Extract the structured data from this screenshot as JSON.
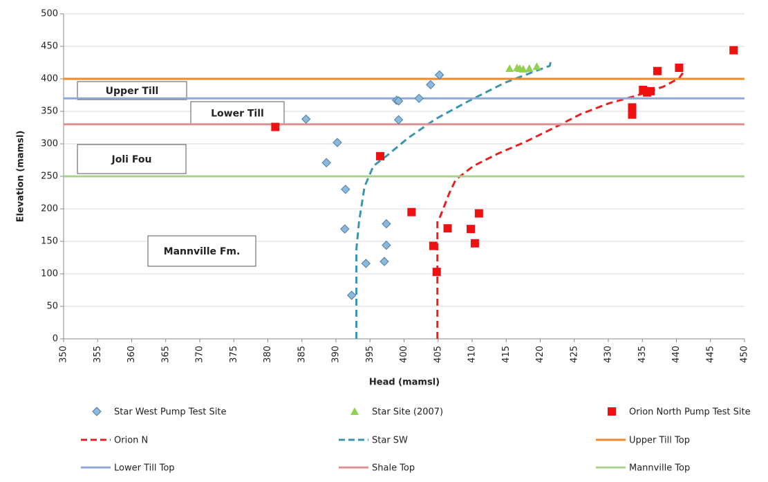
{
  "chart_data": {
    "type": "scatter",
    "x_label": "Head (mamsl)",
    "y_label": "Elevation (mamsl)",
    "xlim": [
      350,
      450
    ],
    "xticks": [
      350,
      355,
      360,
      365,
      370,
      375,
      380,
      385,
      390,
      395,
      400,
      405,
      410,
      415,
      420,
      425,
      430,
      435,
      440,
      445,
      450
    ],
    "ylim": [
      0,
      500
    ],
    "yticks": [
      0,
      50,
      100,
      150,
      200,
      250,
      300,
      350,
      400,
      450,
      500
    ],
    "grid": true,
    "annotations": [
      "Upper Till",
      "Lower Till",
      "Joli Fou",
      "Mannville Fm."
    ],
    "series": [
      {
        "name": "Star West Pump Test Site",
        "type": "scatter",
        "marker": "diamond",
        "color": "#8db8da",
        "x": [
          385.6,
          390.2,
          388.6,
          391.4,
          391.3,
          392.3,
          394.4,
          397.1,
          397.4,
          397.4,
          399.2,
          398.9,
          399.2,
          402.2,
          403.9,
          405.2
        ],
        "values": [
          338,
          302,
          271,
          230,
          169,
          67,
          116,
          119,
          144,
          177,
          337,
          367,
          366,
          370,
          391,
          406
        ]
      },
      {
        "name": "Star Site (2007)",
        "type": "scatter",
        "marker": "triangle",
        "color": "#92d050",
        "x": [
          415.5,
          416.6,
          417,
          417.5,
          418.4,
          419.5
        ],
        "values": [
          416,
          417,
          416,
          415,
          416,
          419
        ]
      },
      {
        "name": "Orion North Pump Test Site",
        "type": "scatter",
        "marker": "square",
        "color": "#ee1111",
        "x": [
          381.1,
          396.5,
          401.1,
          404.3,
          404.8,
          406.4,
          409.8,
          410.4,
          411,
          433.5,
          433.5,
          435.1,
          435.7,
          436.2,
          437.2,
          440.4,
          448.4
        ],
        "values": [
          326,
          281,
          195,
          143,
          103,
          170,
          169,
          147,
          193,
          356,
          345,
          383,
          379,
          381,
          412,
          417,
          444
        ]
      },
      {
        "name": "Orion N",
        "type": "line",
        "dashed": true,
        "color": "#e8201f",
        "x": [
          404.9,
          404.9,
          405.3,
          406.6,
          407.6,
          410.2,
          413.8,
          417.8,
          421.9,
          426,
          430,
          434.1,
          438.1,
          440.4,
          441
        ],
        "values": [
          0,
          181,
          188,
          223,
          245,
          266,
          285,
          303,
          324,
          346,
          362,
          374,
          388,
          401,
          410
        ]
      },
      {
        "name": "Star SW",
        "type": "line",
        "dashed": true,
        "color": "#3d94ad",
        "x": [
          393,
          393,
          393.4,
          394.2,
          395.5,
          397.5,
          400.6,
          404.6,
          409.7,
          414.8,
          418.8,
          421.4,
          421.6
        ],
        "values": [
          0,
          138,
          181,
          234,
          266,
          282,
          309,
          338,
          367,
          394,
          410,
          420,
          429
        ]
      },
      {
        "name": "Upper Till Top",
        "type": "line",
        "dashed": false,
        "color": "#f08a2c",
        "x": [
          350,
          450
        ],
        "values": [
          400,
          400
        ]
      },
      {
        "name": "Lower Till Top",
        "type": "line",
        "dashed": false,
        "color": "#8ea9d8",
        "x": [
          350,
          450
        ],
        "values": [
          370,
          370
        ]
      },
      {
        "name": "Shale Top",
        "type": "line",
        "dashed": false,
        "color": "#dd9292",
        "x": [
          350,
          450
        ],
        "values": [
          330,
          330
        ]
      },
      {
        "name": "Mannville Top",
        "type": "line",
        "dashed": false,
        "color": "#a9d18e",
        "x": [
          350,
          450
        ],
        "values": [
          250,
          250
        ]
      }
    ]
  }
}
